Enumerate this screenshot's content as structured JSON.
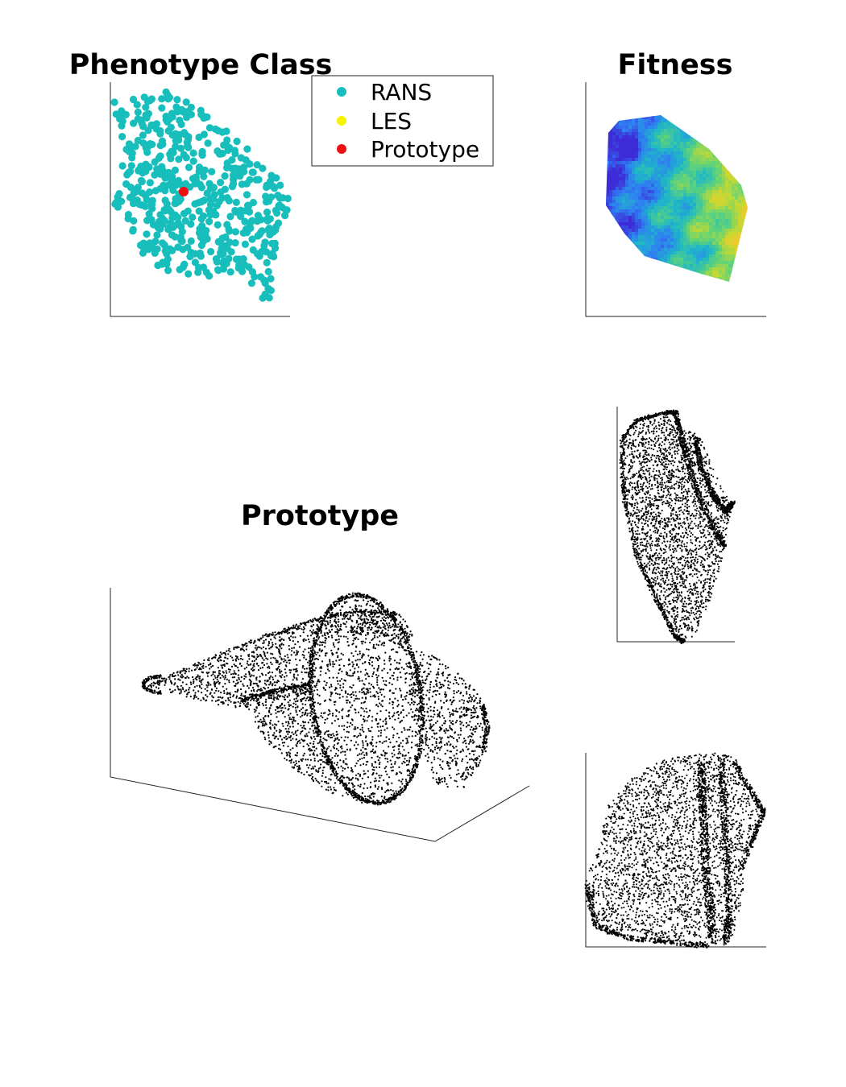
{
  "titles": {
    "phenotype": "Phenotype Class",
    "fitness": "Fitness",
    "prototype": "Prototype"
  },
  "legend": {
    "position": "top-right",
    "items": [
      {
        "label": "RANS",
        "color": "#17bebb"
      },
      {
        "label": "LES",
        "color": "#f5f500"
      },
      {
        "label": "Prototype",
        "color": "#ee1111"
      }
    ]
  },
  "chart_data": [
    {
      "type": "scatter",
      "title": "Phenotype Class",
      "axes_ticks": false,
      "grid": false,
      "xlim": [
        0,
        1
      ],
      "ylim": [
        0,
        1
      ],
      "series": [
        {
          "name": "RANS",
          "color": "#17bebb",
          "count": 520
        },
        {
          "name": "LES",
          "color": "#f5f500",
          "count": 0
        },
        {
          "name": "Prototype",
          "color": "#ee1111",
          "points": [
            [
              0.41,
              0.53
            ]
          ]
        }
      ]
    },
    {
      "type": "heatmap",
      "title": "Fitness",
      "axes_ticks": false,
      "colormap": [
        "#3e2bd8",
        "#2f7ff2",
        "#1fb8c7",
        "#5ed37a",
        "#c4d934",
        "#f5c72a"
      ],
      "low_region": "left",
      "high_region": "right"
    },
    {
      "type": "scatter",
      "title": "Prototype",
      "view": "3d-perspective",
      "marker_color": "#000000"
    },
    {
      "type": "scatter",
      "title": "",
      "view": "side",
      "marker_color": "#000000"
    },
    {
      "type": "scatter",
      "title": "",
      "view": "front",
      "marker_color": "#000000"
    }
  ]
}
